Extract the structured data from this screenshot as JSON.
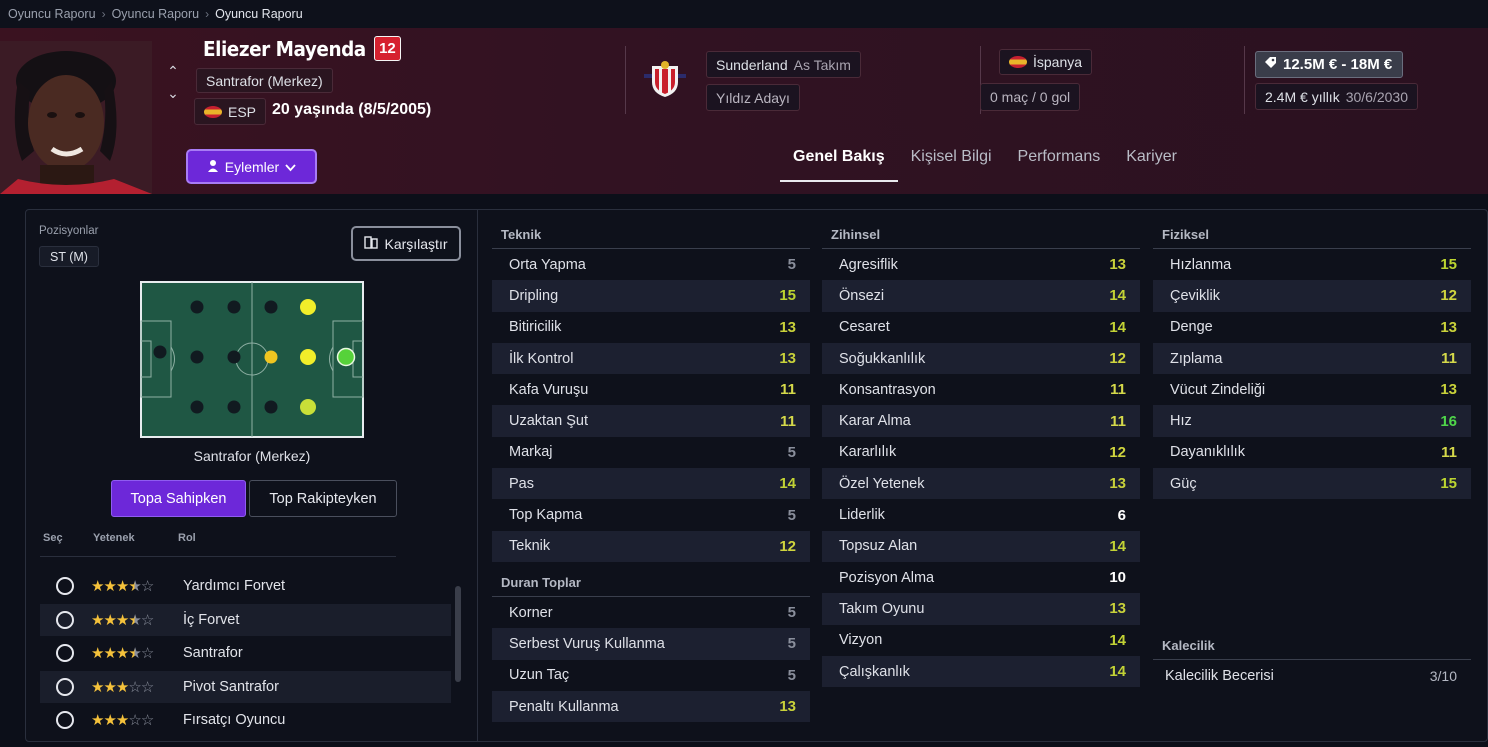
{
  "breadcrumb": [
    "Oyuncu Raporu",
    "Oyuncu Raporu",
    "Oyuncu Raporu"
  ],
  "player": {
    "name": "Eliezer Mayenda",
    "number": "12",
    "position": "Santrafor (Merkez)",
    "nationality_code": "ESP",
    "age_text": "20 yaşında (8/5/2005)"
  },
  "club": {
    "name": "Sunderland",
    "squad": "As Takım",
    "status": "Yıldız Adayı"
  },
  "international": {
    "country": "İspanya",
    "caps": "0 maç / 0 gol"
  },
  "contract": {
    "value_range": "12.5M € - 18M €",
    "wage": "2.4M € yıllık",
    "expiry": "30/6/2030"
  },
  "actions_label": "Eylemler",
  "tabs": [
    "Genel Bakış",
    "Kişisel Bilgi",
    "Performans",
    "Kariyer"
  ],
  "positions": {
    "title": "Pozisyonlar",
    "badge": "ST (M)",
    "compare_label": "Karşılaştır",
    "pitch_label": "Santrafor (Merkez)",
    "toggle_on": "Topa Sahipken",
    "toggle_off": "Top Rakipteyken"
  },
  "roles": {
    "headers": [
      "Seç",
      "Yetenek",
      "Rol"
    ],
    "items": [
      {
        "name": "Yardımcı Forvet",
        "stars": 3.5
      },
      {
        "name": "İç Forvet",
        "stars": 3.5
      },
      {
        "name": "Santrafor",
        "stars": 3.5
      },
      {
        "name": "Pivot Santrafor",
        "stars": 3
      },
      {
        "name": "Fırsatçı Oyuncu",
        "stars": 3
      }
    ]
  },
  "attributes": {
    "technical": {
      "title": "Teknik",
      "items": [
        {
          "name": "Orta Yapma",
          "value": "5"
        },
        {
          "name": "Dripling",
          "value": "15"
        },
        {
          "name": "Bitiricilik",
          "value": "13"
        },
        {
          "name": "İlk Kontrol",
          "value": "13"
        },
        {
          "name": "Kafa Vuruşu",
          "value": "11"
        },
        {
          "name": "Uzaktan Şut",
          "value": "11"
        },
        {
          "name": "Markaj",
          "value": "5"
        },
        {
          "name": "Pas",
          "value": "14"
        },
        {
          "name": "Top Kapma",
          "value": "5"
        },
        {
          "name": "Teknik",
          "value": "12"
        }
      ]
    },
    "set_pieces": {
      "title": "Duran Toplar",
      "items": [
        {
          "name": "Korner",
          "value": "5"
        },
        {
          "name": "Serbest Vuruş Kullanma",
          "value": "5"
        },
        {
          "name": "Uzun Taç",
          "value": "5"
        },
        {
          "name": "Penaltı Kullanma",
          "value": "13"
        }
      ]
    },
    "mental": {
      "title": "Zihinsel",
      "items": [
        {
          "name": "Agresiflik",
          "value": "13"
        },
        {
          "name": "Önsezi",
          "value": "14"
        },
        {
          "name": "Cesaret",
          "value": "14"
        },
        {
          "name": "Soğukkanlılık",
          "value": "12"
        },
        {
          "name": "Konsantrasyon",
          "value": "11"
        },
        {
          "name": "Karar Alma",
          "value": "11"
        },
        {
          "name": "Kararlılık",
          "value": "12"
        },
        {
          "name": "Özel Yetenek",
          "value": "13"
        },
        {
          "name": "Liderlik",
          "value": "6"
        },
        {
          "name": "Topsuz Alan",
          "value": "14"
        },
        {
          "name": "Pozisyon Alma",
          "value": "10"
        },
        {
          "name": "Takım Oyunu",
          "value": "13"
        },
        {
          "name": "Vizyon",
          "value": "14"
        },
        {
          "name": "Çalışkanlık",
          "value": "14"
        }
      ]
    },
    "physical": {
      "title": "Fiziksel",
      "items": [
        {
          "name": "Hızlanma",
          "value": "15"
        },
        {
          "name": "Çeviklik",
          "value": "12"
        },
        {
          "name": "Denge",
          "value": "13"
        },
        {
          "name": "Zıplama",
          "value": "11"
        },
        {
          "name": "Vücut Zindeliği",
          "value": "13"
        },
        {
          "name": "Hız",
          "value": "16"
        },
        {
          "name": "Dayanıklılık",
          "value": "11"
        },
        {
          "name": "Güç",
          "value": "15"
        }
      ]
    },
    "goalkeeping": {
      "title": "Kalecilik",
      "items": [
        {
          "name": "Kalecilik Becerisi",
          "value": "3/10"
        }
      ]
    }
  },
  "colors": {
    "accent": "#6d28d9",
    "header_bg": "#3a1220",
    "jersey": "#d6212f",
    "attr_green": "#4fd64a",
    "attr_yellow": "#c8d13a"
  }
}
